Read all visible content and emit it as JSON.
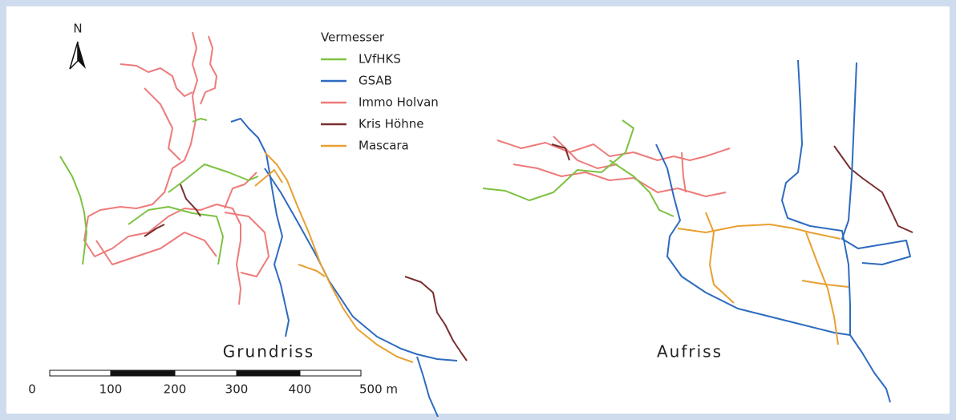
{
  "north": "N",
  "legend": {
    "title": "Vermesser",
    "items": [
      {
        "name": "LVfHKS",
        "color": "#7dc242"
      },
      {
        "name": "GSAB",
        "color": "#2e6bbf"
      },
      {
        "name": "Immo Holvan",
        "color": "#ee7b7b"
      },
      {
        "name": "Kris Höhne",
        "color": "#7a2f2f"
      },
      {
        "name": "Mascara",
        "color": "#e8a030"
      }
    ]
  },
  "views": [
    "Grundriss",
    "Aufriss"
  ],
  "scale_bar": {
    "labels": [
      "0",
      "100",
      "200",
      "300",
      "400",
      "500 m"
    ]
  }
}
